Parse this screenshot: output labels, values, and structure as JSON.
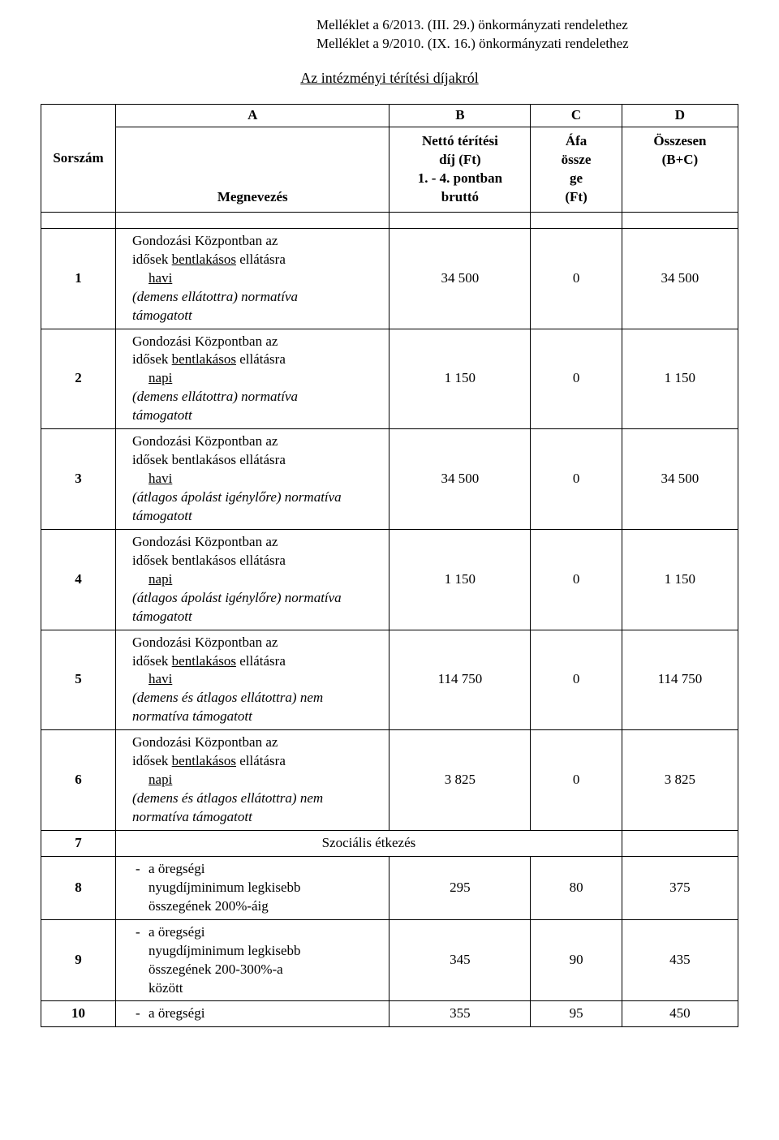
{
  "header": {
    "line1": "Melléklet a 6/2013. (III. 29.) önkormányzati rendelethez",
    "line2": "Melléklet a 9/2010. (IX. 16.) önkormányzati rendelethez"
  },
  "title": "Az intézményi térítési díjakról",
  "columns": {
    "letters": [
      "A",
      "B",
      "C",
      "D"
    ],
    "sorszam": "Sorszám",
    "megnevezes": "Megnevezés",
    "netto_line1": "Nettó térítési",
    "netto_line2": "díj (Ft)",
    "netto_line3": "1. - 4. pontban",
    "netto_line4": "bruttó",
    "afa_line1": "Áfa",
    "afa_line2": "össze",
    "afa_line3": "ge",
    "afa_line4": "(Ft)",
    "osszesen_line1": "Összesen",
    "osszesen_line2": "(B+C)"
  },
  "rows": [
    {
      "num": "1",
      "line1": "Gondozási Központban az",
      "line2_prefix": "idősek ",
      "line2_underline": "bentlakásos",
      "line2_suffix": " ellátásra",
      "line3": "havi",
      "line4": "(demens ellátottra) normatíva",
      "line5": "támogatott",
      "netto": "34 500",
      "afa": "0",
      "osszesen": "34 500"
    },
    {
      "num": "2",
      "line1": "Gondozási Központban az",
      "line2_prefix": "idősek ",
      "line2_underline": "bentlakásos",
      "line2_suffix": " ellátásra",
      "line3": "napi",
      "line4": "(demens ellátottra) normatíva",
      "line5": "támogatott",
      "netto": "1 150",
      "afa": "0",
      "osszesen": "1 150"
    },
    {
      "num": "3",
      "line1": "Gondozási Központban az",
      "line2_prefix": "idősek ",
      "line2_plain": "bentlakásos",
      "line2_suffix": " ellátásra",
      "line3": "havi",
      "line4": "(átlagos ápolást igénylőre) normatíva",
      "line5": "támogatott",
      "netto": "34 500",
      "afa": "0",
      "osszesen": "34 500"
    },
    {
      "num": "4",
      "line1": "Gondozási Központban az",
      "line2_prefix": "idősek ",
      "line2_plain": "bentlakásos",
      "line2_suffix": " ellátásra",
      "line3": "napi",
      "line4": "(átlagos ápolást igénylőre) normatíva",
      "line5": "támogatott",
      "netto": "1 150",
      "afa": "0",
      "osszesen": "1 150"
    },
    {
      "num": "5",
      "line1": "Gondozási Központban az",
      "line2_prefix": "idősek ",
      "line2_underline": "bentlakásos",
      "line2_suffix": " ellátásra",
      "line3": "havi",
      "line4": "(demens és átlagos ellátottra) nem",
      "line5": "normatíva támogatott",
      "netto": "114 750",
      "afa": "0",
      "osszesen": "114 750"
    },
    {
      "num": "6",
      "line1": "Gondozási Központban az",
      "line2_prefix": "idősek ",
      "line2_underline": "bentlakásos",
      "line2_suffix": " ellátásra",
      "line3": "napi",
      "line4": "(demens és átlagos ellátottra) nem",
      "line5": "normatíva támogatott",
      "netto": "3 825",
      "afa": "0",
      "osszesen": "3 825"
    }
  ],
  "row7": {
    "num": "7",
    "label": "Szociális étkezés"
  },
  "row8": {
    "num": "8",
    "line1": "a öregségi",
    "line2": "nyugdíjminimum legkisebb",
    "line3": "összegének 200%-áig",
    "netto": "295",
    "afa": "80",
    "osszesen": "375"
  },
  "row9": {
    "num": "9",
    "line1": "a öregségi",
    "line2": "nyugdíjminimum legkisebb",
    "line3": "összegének 200-300%-a",
    "line4": "között",
    "netto": "345",
    "afa": "90",
    "osszesen": "435"
  },
  "row10": {
    "num": "10",
    "label": "a öregségi",
    "netto": "355",
    "afa": "95",
    "osszesen": "450"
  }
}
